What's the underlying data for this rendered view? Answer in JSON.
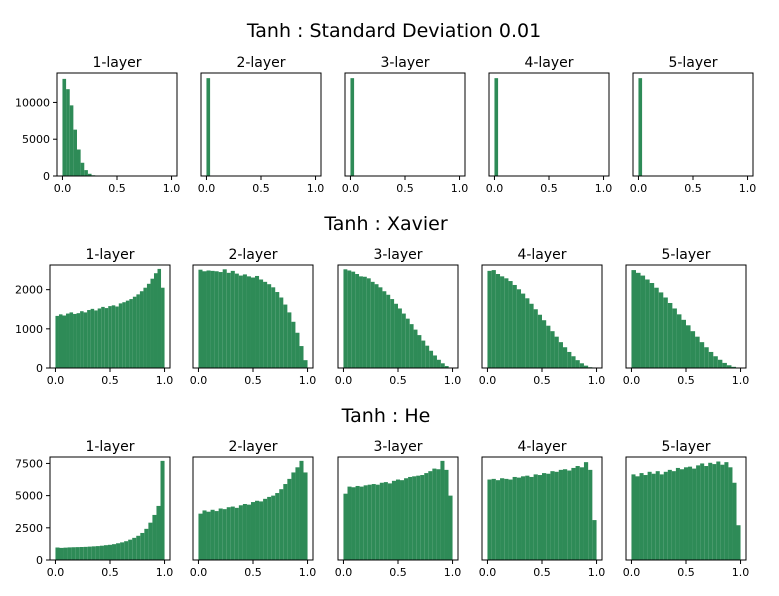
{
  "chart_data": [
    {
      "type": "bar",
      "title": "Tanh : Standard Deviation 0.01",
      "x_ticks": [
        "0.0",
        "0.5",
        "1.0"
      ],
      "y_ticks": [
        "0",
        "5000",
        "10000"
      ],
      "ylim": [
        0,
        14000
      ],
      "xlim": [
        -0.05,
        1.05
      ],
      "bar_color": "#2e8b57",
      "panels": [
        {
          "title": "1-layer",
          "values": [
            13200,
            11800,
            9600,
            6300,
            3600,
            1800,
            800,
            300,
            100,
            30,
            0,
            0,
            0,
            0,
            0,
            0,
            0,
            0,
            0,
            0,
            0,
            0,
            0,
            0,
            0,
            0,
            0,
            0,
            0,
            0
          ]
        },
        {
          "title": "2-layer",
          "values": [
            13300,
            0,
            0,
            0,
            0,
            0,
            0,
            0,
            0,
            0,
            0,
            0,
            0,
            0,
            0,
            0,
            0,
            0,
            0,
            0,
            0,
            0,
            0,
            0,
            0,
            0,
            0,
            0,
            0,
            0
          ]
        },
        {
          "title": "3-layer",
          "values": [
            13300,
            0,
            0,
            0,
            0,
            0,
            0,
            0,
            0,
            0,
            0,
            0,
            0,
            0,
            0,
            0,
            0,
            0,
            0,
            0,
            0,
            0,
            0,
            0,
            0,
            0,
            0,
            0,
            0,
            0
          ]
        },
        {
          "title": "4-layer",
          "values": [
            13300,
            0,
            0,
            0,
            0,
            0,
            0,
            0,
            0,
            0,
            0,
            0,
            0,
            0,
            0,
            0,
            0,
            0,
            0,
            0,
            0,
            0,
            0,
            0,
            0,
            0,
            0,
            0,
            0,
            0
          ]
        },
        {
          "title": "5-layer",
          "values": [
            13300,
            0,
            0,
            0,
            0,
            0,
            0,
            0,
            0,
            0,
            0,
            0,
            0,
            0,
            0,
            0,
            0,
            0,
            0,
            0,
            0,
            0,
            0,
            0,
            0,
            0,
            0,
            0,
            0,
            0
          ]
        }
      ]
    },
    {
      "type": "bar",
      "title": "Tanh : Xavier",
      "x_ticks": [
        "0.0",
        "0.5",
        "1.0"
      ],
      "y_ticks": [
        "0",
        "1000",
        "2000"
      ],
      "ylim": [
        0,
        2630
      ],
      "xlim": [
        -0.05,
        1.05
      ],
      "bar_color": "#2e8b57",
      "panels": [
        {
          "title": "1-layer",
          "values": [
            1330,
            1370,
            1340,
            1390,
            1420,
            1380,
            1400,
            1450,
            1420,
            1480,
            1510,
            1470,
            1520,
            1560,
            1530,
            1580,
            1600,
            1570,
            1650,
            1680,
            1720,
            1760,
            1820,
            1880,
            1960,
            2050,
            2150,
            2280,
            2420,
            2530,
            2050
          ]
        },
        {
          "title": "2-layer",
          "values": [
            2510,
            2470,
            2490,
            2480,
            2470,
            2450,
            2520,
            2430,
            2480,
            2410,
            2360,
            2390,
            2340,
            2310,
            2350,
            2260,
            2200,
            2140,
            2060,
            1940,
            1800,
            1620,
            1420,
            1180,
            900,
            560,
            200
          ]
        },
        {
          "title": "3-layer",
          "values": [
            2520,
            2490,
            2460,
            2400,
            2340,
            2330,
            2290,
            2200,
            2140,
            2060,
            1960,
            1870,
            1760,
            1640,
            1520,
            1390,
            1260,
            1120,
            980,
            840,
            700,
            570,
            440,
            320,
            210,
            120,
            50,
            10
          ]
        },
        {
          "title": "4-layer",
          "values": [
            2480,
            2500,
            2400,
            2340,
            2290,
            2220,
            2120,
            2010,
            1900,
            1780,
            1640,
            1500,
            1360,
            1220,
            1080,
            940,
            800,
            660,
            530,
            410,
            300,
            200,
            120,
            60,
            20,
            8
          ]
        },
        {
          "title": "5-layer",
          "values": [
            2500,
            2430,
            2360,
            2260,
            2170,
            2050,
            1930,
            1800,
            1660,
            1520,
            1370,
            1230,
            1090,
            940,
            800,
            660,
            530,
            410,
            300,
            210,
            130,
            70,
            30,
            10
          ]
        }
      ]
    },
    {
      "type": "bar",
      "title": "Tanh : He",
      "x_ticks": [
        "0.0",
        "0.5",
        "1.0"
      ],
      "y_ticks": [
        "0",
        "2500",
        "5000",
        "7500"
      ],
      "ylim": [
        0,
        8000
      ],
      "xlim": [
        -0.05,
        1.05
      ],
      "bar_color": "#2e8b57",
      "panels": [
        {
          "title": "1-layer",
          "values": [
            970,
            940,
            960,
            980,
            990,
            1000,
            1010,
            1020,
            1040,
            1060,
            1080,
            1110,
            1150,
            1180,
            1230,
            1300,
            1370,
            1460,
            1580,
            1720,
            1880,
            2100,
            2420,
            2900,
            3500,
            4200,
            7700
          ]
        },
        {
          "title": "2-layer",
          "values": [
            3600,
            3850,
            3750,
            3900,
            3800,
            4000,
            3950,
            4100,
            4150,
            4050,
            4250,
            4350,
            4300,
            4500,
            4600,
            4550,
            4750,
            4900,
            5000,
            5200,
            5500,
            5900,
            6300,
            6800,
            7200,
            7700,
            6800
          ]
        },
        {
          "title": "3-layer",
          "values": [
            5150,
            5700,
            5650,
            5750,
            5700,
            5800,
            5850,
            5900,
            5850,
            6000,
            6050,
            5950,
            6150,
            6250,
            6200,
            6350,
            6450,
            6500,
            6550,
            6600,
            6750,
            6900,
            7100,
            7050,
            7700,
            7000,
            5000
          ]
        },
        {
          "title": "4-layer",
          "values": [
            6250,
            6300,
            6200,
            6350,
            6300,
            6250,
            6450,
            6400,
            6500,
            6550,
            6450,
            6650,
            6600,
            6750,
            6700,
            6900,
            6850,
            7000,
            7050,
            6950,
            7150,
            7300,
            7200,
            7600,
            7000,
            3100
          ]
        },
        {
          "title": "5-layer",
          "values": [
            6650,
            6500,
            6750,
            6600,
            6850,
            6700,
            6900,
            6650,
            6850,
            7000,
            6900,
            7150,
            7050,
            7200,
            7250,
            7100,
            7350,
            7500,
            7300,
            7550,
            7450,
            7650,
            7400,
            7600,
            7200,
            6000,
            2700
          ]
        }
      ]
    }
  ]
}
